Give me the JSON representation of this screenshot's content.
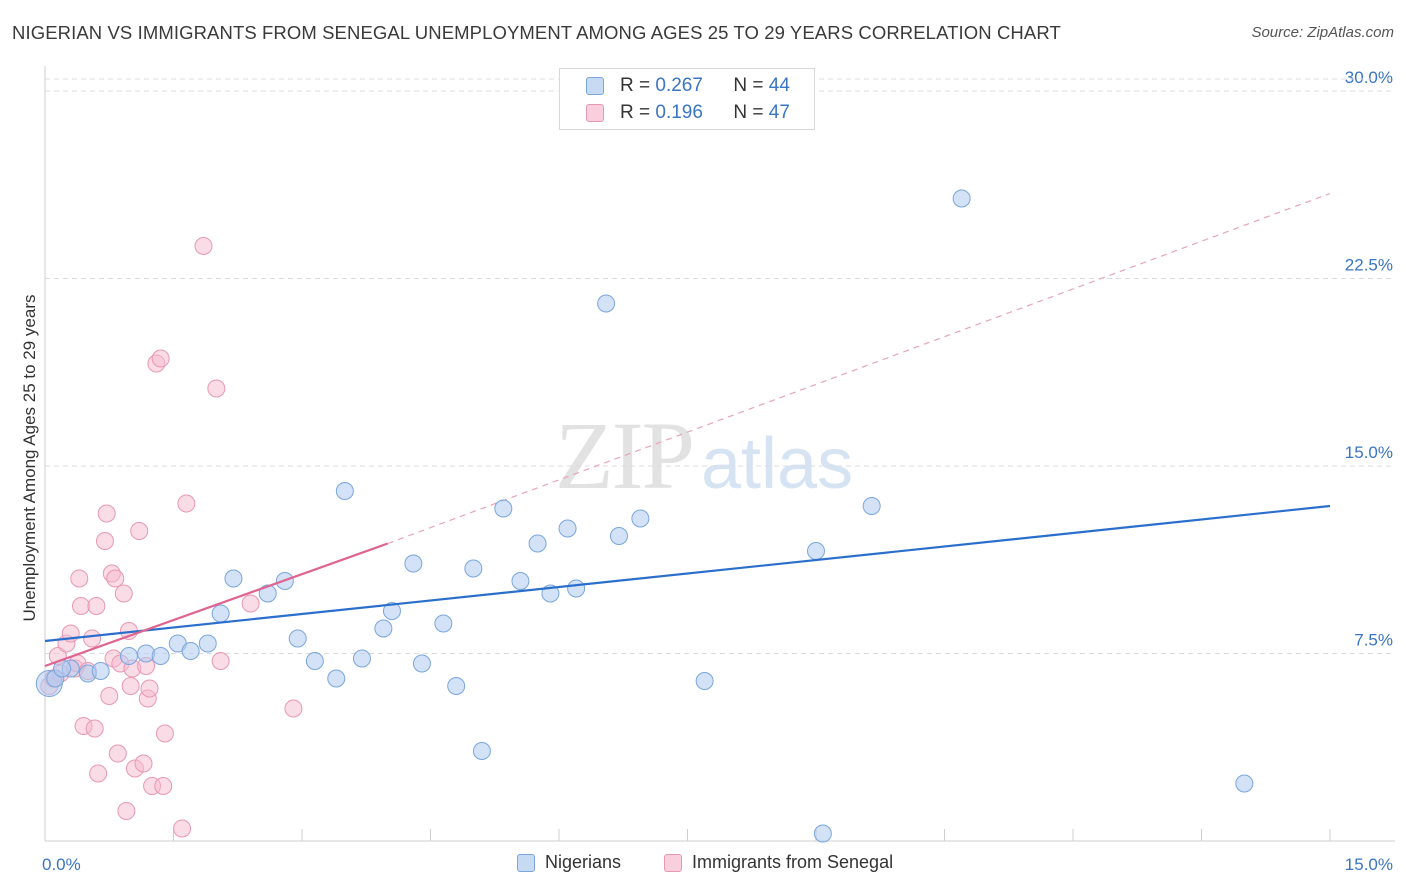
{
  "title": "NIGERIAN VS IMMIGRANTS FROM SENEGAL UNEMPLOYMENT AMONG AGES 25 TO 29 YEARS CORRELATION CHART",
  "source": "Source: ZipAtlas.com",
  "watermark": {
    "zip": "ZIP",
    "atlas": "atlas"
  },
  "legend": {
    "rows": [
      {
        "r_label": "R =",
        "r_value": "0.267",
        "n_label": "N =",
        "n_value": "44"
      },
      {
        "r_label": "R =",
        "r_value": "0.196",
        "n_label": "N =",
        "n_value": "47"
      }
    ]
  },
  "colors": {
    "blue_fill": "#aecbf0",
    "blue_stroke": "#7aa6dc",
    "blue_line": "#2b6fcc",
    "pink_fill": "#f6b9cd",
    "pink_stroke": "#e898b4",
    "pink_line": "#e0648f",
    "grid": "#dcdcdc",
    "tick_label": "#3a75c4"
  },
  "chart_data": {
    "type": "scatter",
    "title": "NIGERIAN VS IMMIGRANTS FROM SENEGAL UNEMPLOYMENT AMONG AGES 25 TO 29 YEARS CORRELATION CHART",
    "xlabel": "",
    "ylabel": "Unemployment Among Ages 25 to 29 years",
    "xlim": [
      0,
      15
    ],
    "ylim": [
      0,
      31
    ],
    "x_tick_labels": [
      "0.0%",
      "15.0%"
    ],
    "y_ticks": [
      7.5,
      15,
      22.5,
      30
    ],
    "y_tick_labels": [
      "7.5%",
      "15.0%",
      "22.5%",
      "30.0%"
    ],
    "grid": true,
    "legend_position": "top-center",
    "series": [
      {
        "name": "Nigerians",
        "color": "#aecbf0",
        "r": 0.267,
        "n": 44,
        "trend": {
          "x": [
            0,
            15
          ],
          "y": [
            8.0,
            13.4
          ],
          "style": "solid"
        },
        "points": [
          [
            0.05,
            6.3
          ],
          [
            0.12,
            6.5
          ],
          [
            0.3,
            6.9
          ],
          [
            0.5,
            6.7
          ],
          [
            0.65,
            6.8
          ],
          [
            0.98,
            7.4
          ],
          [
            1.18,
            7.5
          ],
          [
            1.35,
            7.4
          ],
          [
            1.55,
            7.9
          ],
          [
            1.7,
            7.6
          ],
          [
            1.9,
            7.9
          ],
          [
            2.05,
            9.1
          ],
          [
            2.2,
            10.5
          ],
          [
            2.6,
            9.9
          ],
          [
            2.8,
            10.4
          ],
          [
            2.95,
            8.1
          ],
          [
            3.15,
            7.2
          ],
          [
            3.4,
            6.5
          ],
          [
            3.5,
            14.0
          ],
          [
            3.7,
            7.3
          ],
          [
            3.95,
            8.5
          ],
          [
            4.05,
            9.2
          ],
          [
            4.3,
            11.1
          ],
          [
            4.4,
            7.1
          ],
          [
            4.65,
            8.7
          ],
          [
            4.8,
            6.2
          ],
          [
            5.0,
            10.9
          ],
          [
            5.1,
            3.6
          ],
          [
            5.35,
            13.3
          ],
          [
            5.55,
            10.4
          ],
          [
            5.75,
            11.9
          ],
          [
            5.9,
            9.9
          ],
          [
            6.1,
            12.5
          ],
          [
            6.2,
            10.1
          ],
          [
            6.55,
            21.5
          ],
          [
            6.7,
            12.2
          ],
          [
            6.95,
            12.9
          ],
          [
            7.7,
            6.4
          ],
          [
            9.0,
            11.6
          ],
          [
            9.08,
            0.3
          ],
          [
            9.65,
            13.4
          ],
          [
            10.7,
            25.7
          ],
          [
            14.0,
            2.3
          ],
          [
            0.2,
            6.9
          ]
        ]
      },
      {
        "name": "Immigrants from Senegal",
        "color": "#f6b9cd",
        "r": 0.196,
        "n": 47,
        "trend": {
          "x": [
            0,
            4.0
          ],
          "y": [
            7.0,
            11.9
          ],
          "style": "solid",
          "extension": {
            "x": [
              4.0,
              15
            ],
            "y": [
              11.9,
              25.9
            ],
            "style": "dashed"
          }
        },
        "points": [
          [
            0.05,
            6.2
          ],
          [
            0.1,
            6.5
          ],
          [
            0.15,
            7.4
          ],
          [
            0.18,
            6.7
          ],
          [
            0.25,
            7.9
          ],
          [
            0.3,
            8.3
          ],
          [
            0.35,
            6.9
          ],
          [
            0.38,
            7.1
          ],
          [
            0.4,
            10.5
          ],
          [
            0.42,
            9.4
          ],
          [
            0.45,
            4.6
          ],
          [
            0.5,
            6.8
          ],
          [
            0.55,
            8.1
          ],
          [
            0.58,
            4.5
          ],
          [
            0.6,
            9.4
          ],
          [
            0.62,
            2.7
          ],
          [
            0.7,
            12.0
          ],
          [
            0.72,
            13.1
          ],
          [
            0.75,
            5.8
          ],
          [
            0.78,
            10.7
          ],
          [
            0.8,
            7.3
          ],
          [
            0.82,
            10.5
          ],
          [
            0.85,
            3.5
          ],
          [
            0.88,
            7.1
          ],
          [
            0.92,
            9.9
          ],
          [
            0.95,
            1.2
          ],
          [
            0.98,
            8.4
          ],
          [
            1.0,
            6.2
          ],
          [
            1.02,
            6.9
          ],
          [
            1.05,
            2.9
          ],
          [
            1.1,
            12.4
          ],
          [
            1.15,
            3.1
          ],
          [
            1.18,
            7.0
          ],
          [
            1.2,
            5.7
          ],
          [
            1.22,
            6.1
          ],
          [
            1.25,
            2.2
          ],
          [
            1.3,
            19.1
          ],
          [
            1.35,
            19.3
          ],
          [
            1.38,
            2.2
          ],
          [
            1.4,
            4.3
          ],
          [
            1.6,
            0.5
          ],
          [
            1.65,
            13.5
          ],
          [
            1.85,
            23.8
          ],
          [
            2.0,
            18.1
          ],
          [
            2.05,
            7.2
          ],
          [
            2.4,
            9.5
          ],
          [
            2.9,
            5.3
          ]
        ]
      }
    ],
    "bottom_legend": [
      "Nigerians",
      "Immigrants from Senegal"
    ]
  }
}
